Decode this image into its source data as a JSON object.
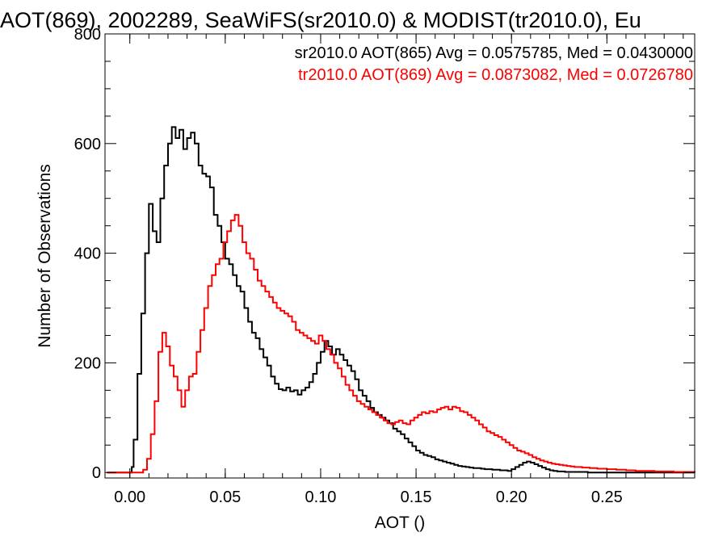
{
  "chart_data": {
    "type": "step",
    "title": "AOT(869), 2002289, SeaWiFS(sr2010.0) & MODIST(tr2010.0), Eu",
    "xlabel": "AOT ()",
    "ylabel": "Number of Observations",
    "xlim": [
      -0.013,
      0.296
    ],
    "ylim": [
      -10,
      800
    ],
    "xticks": [
      0.0,
      0.05,
      0.1,
      0.15,
      0.2,
      0.25
    ],
    "xtick_labels": [
      "0.00",
      "0.05",
      "0.10",
      "0.15",
      "0.20",
      "0.25"
    ],
    "yticks": [
      0,
      200,
      400,
      600,
      800
    ],
    "ytick_labels": [
      "0",
      "200",
      "400",
      "600",
      "800"
    ],
    "grid": false,
    "legend_position": "top-right",
    "series": [
      {
        "name": "sr2010.0 AOT(865) Avg = 0.0575785, Med = 0.0430000",
        "color": "#000000",
        "points": [
          [
            -0.012,
            0
          ],
          [
            0.0,
            0
          ],
          [
            0.001,
            10
          ],
          [
            0.002,
            60
          ],
          [
            0.004,
            180
          ],
          [
            0.006,
            290
          ],
          [
            0.008,
            400
          ],
          [
            0.01,
            490
          ],
          [
            0.012,
            440
          ],
          [
            0.014,
            420
          ],
          [
            0.016,
            500
          ],
          [
            0.018,
            560
          ],
          [
            0.02,
            600
          ],
          [
            0.022,
            630
          ],
          [
            0.024,
            610
          ],
          [
            0.026,
            625
          ],
          [
            0.028,
            590
          ],
          [
            0.03,
            610
          ],
          [
            0.032,
            620
          ],
          [
            0.034,
            600
          ],
          [
            0.036,
            560
          ],
          [
            0.038,
            545
          ],
          [
            0.04,
            540
          ],
          [
            0.042,
            520
          ],
          [
            0.044,
            470
          ],
          [
            0.046,
            450
          ],
          [
            0.048,
            420
          ],
          [
            0.05,
            390
          ],
          [
            0.052,
            380
          ],
          [
            0.054,
            360
          ],
          [
            0.056,
            340
          ],
          [
            0.058,
            330
          ],
          [
            0.06,
            300
          ],
          [
            0.062,
            275
          ],
          [
            0.064,
            255
          ],
          [
            0.066,
            245
          ],
          [
            0.068,
            225
          ],
          [
            0.07,
            210
          ],
          [
            0.072,
            195
          ],
          [
            0.074,
            175
          ],
          [
            0.076,
            162
          ],
          [
            0.078,
            152
          ],
          [
            0.08,
            150
          ],
          [
            0.082,
            155
          ],
          [
            0.084,
            148
          ],
          [
            0.086,
            150
          ],
          [
            0.088,
            142
          ],
          [
            0.09,
            150
          ],
          [
            0.092,
            155
          ],
          [
            0.094,
            165
          ],
          [
            0.096,
            180
          ],
          [
            0.098,
            200
          ],
          [
            0.1,
            220
          ],
          [
            0.102,
            240
          ],
          [
            0.104,
            230
          ],
          [
            0.106,
            215
          ],
          [
            0.108,
            225
          ],
          [
            0.11,
            215
          ],
          [
            0.112,
            205
          ],
          [
            0.114,
            195
          ],
          [
            0.116,
            185
          ],
          [
            0.118,
            170
          ],
          [
            0.12,
            150
          ],
          [
            0.122,
            140
          ],
          [
            0.124,
            130
          ],
          [
            0.126,
            118
          ],
          [
            0.128,
            110
          ],
          [
            0.13,
            105
          ],
          [
            0.132,
            100
          ],
          [
            0.134,
            95
          ],
          [
            0.136,
            90
          ],
          [
            0.138,
            80
          ],
          [
            0.14,
            75
          ],
          [
            0.142,
            70
          ],
          [
            0.144,
            62
          ],
          [
            0.146,
            55
          ],
          [
            0.148,
            48
          ],
          [
            0.15,
            40
          ],
          [
            0.152,
            36
          ],
          [
            0.154,
            32
          ],
          [
            0.156,
            30
          ],
          [
            0.158,
            28
          ],
          [
            0.16,
            24
          ],
          [
            0.162,
            22
          ],
          [
            0.164,
            20
          ],
          [
            0.166,
            18
          ],
          [
            0.168,
            16
          ],
          [
            0.17,
            14
          ],
          [
            0.172,
            12
          ],
          [
            0.174,
            11
          ],
          [
            0.176,
            10
          ],
          [
            0.178,
            9
          ],
          [
            0.18,
            8
          ],
          [
            0.182,
            8
          ],
          [
            0.184,
            7
          ],
          [
            0.186,
            6
          ],
          [
            0.188,
            6
          ],
          [
            0.19,
            5
          ],
          [
            0.192,
            5
          ],
          [
            0.194,
            4
          ],
          [
            0.196,
            4
          ],
          [
            0.198,
            3
          ],
          [
            0.2,
            6
          ],
          [
            0.202,
            10
          ],
          [
            0.204,
            14
          ],
          [
            0.206,
            18
          ],
          [
            0.208,
            20
          ],
          [
            0.21,
            18
          ],
          [
            0.212,
            15
          ],
          [
            0.214,
            12
          ],
          [
            0.216,
            9
          ],
          [
            0.218,
            6
          ],
          [
            0.22,
            4
          ],
          [
            0.222,
            3
          ],
          [
            0.224,
            2
          ],
          [
            0.226,
            2
          ],
          [
            0.228,
            1
          ],
          [
            0.23,
            1
          ],
          [
            0.235,
            1
          ],
          [
            0.24,
            0
          ],
          [
            0.296,
            0
          ]
        ]
      },
      {
        "name": "tr2010.0 AOT(869) Avg = 0.0873082, Med = 0.0726780",
        "color": "#ff0000",
        "points": [
          [
            -0.012,
            0
          ],
          [
            0.005,
            0
          ],
          [
            0.007,
            5
          ],
          [
            0.009,
            25
          ],
          [
            0.011,
            70
          ],
          [
            0.013,
            130
          ],
          [
            0.015,
            220
          ],
          [
            0.017,
            255
          ],
          [
            0.019,
            230
          ],
          [
            0.021,
            195
          ],
          [
            0.023,
            175
          ],
          [
            0.025,
            150
          ],
          [
            0.027,
            120
          ],
          [
            0.029,
            150
          ],
          [
            0.031,
            175
          ],
          [
            0.033,
            180
          ],
          [
            0.035,
            220
          ],
          [
            0.037,
            260
          ],
          [
            0.039,
            300
          ],
          [
            0.041,
            340
          ],
          [
            0.043,
            360
          ],
          [
            0.045,
            380
          ],
          [
            0.047,
            390
          ],
          [
            0.049,
            420
          ],
          [
            0.051,
            440
          ],
          [
            0.053,
            460
          ],
          [
            0.055,
            470
          ],
          [
            0.057,
            450
          ],
          [
            0.059,
            420
          ],
          [
            0.061,
            400
          ],
          [
            0.063,
            390
          ],
          [
            0.065,
            370
          ],
          [
            0.067,
            350
          ],
          [
            0.069,
            340
          ],
          [
            0.071,
            330
          ],
          [
            0.073,
            320
          ],
          [
            0.075,
            310
          ],
          [
            0.077,
            300
          ],
          [
            0.079,
            295
          ],
          [
            0.081,
            290
          ],
          [
            0.083,
            285
          ],
          [
            0.085,
            275
          ],
          [
            0.087,
            260
          ],
          [
            0.089,
            255
          ],
          [
            0.091,
            250
          ],
          [
            0.093,
            245
          ],
          [
            0.095,
            240
          ],
          [
            0.097,
            235
          ],
          [
            0.099,
            250
          ],
          [
            0.101,
            240
          ],
          [
            0.103,
            225
          ],
          [
            0.105,
            215
          ],
          [
            0.107,
            200
          ],
          [
            0.109,
            190
          ],
          [
            0.111,
            175
          ],
          [
            0.113,
            160
          ],
          [
            0.115,
            150
          ],
          [
            0.117,
            140
          ],
          [
            0.119,
            130
          ],
          [
            0.121,
            125
          ],
          [
            0.123,
            120
          ],
          [
            0.125,
            115
          ],
          [
            0.127,
            110
          ],
          [
            0.129,
            105
          ],
          [
            0.131,
            100
          ],
          [
            0.133,
            95
          ],
          [
            0.135,
            90
          ],
          [
            0.137,
            88
          ],
          [
            0.139,
            92
          ],
          [
            0.141,
            95
          ],
          [
            0.143,
            90
          ],
          [
            0.145,
            88
          ],
          [
            0.147,
            95
          ],
          [
            0.149,
            100
          ],
          [
            0.151,
            105
          ],
          [
            0.153,
            110
          ],
          [
            0.155,
            108
          ],
          [
            0.157,
            112
          ],
          [
            0.159,
            110
          ],
          [
            0.161,
            115
          ],
          [
            0.163,
            118
          ],
          [
            0.165,
            120
          ],
          [
            0.167,
            115
          ],
          [
            0.169,
            120
          ],
          [
            0.171,
            118
          ],
          [
            0.173,
            112
          ],
          [
            0.175,
            110
          ],
          [
            0.177,
            105
          ],
          [
            0.179,
            100
          ],
          [
            0.181,
            95
          ],
          [
            0.183,
            88
          ],
          [
            0.185,
            82
          ],
          [
            0.187,
            75
          ],
          [
            0.189,
            72
          ],
          [
            0.191,
            68
          ],
          [
            0.193,
            65
          ],
          [
            0.195,
            60
          ],
          [
            0.197,
            55
          ],
          [
            0.199,
            50
          ],
          [
            0.201,
            45
          ],
          [
            0.203,
            40
          ],
          [
            0.205,
            38
          ],
          [
            0.207,
            35
          ],
          [
            0.209,
            32
          ],
          [
            0.211,
            28
          ],
          [
            0.213,
            25
          ],
          [
            0.215,
            22
          ],
          [
            0.217,
            20
          ],
          [
            0.219,
            18
          ],
          [
            0.221,
            16
          ],
          [
            0.223,
            15
          ],
          [
            0.225,
            14
          ],
          [
            0.227,
            13
          ],
          [
            0.229,
            12
          ],
          [
            0.231,
            11
          ],
          [
            0.233,
            10
          ],
          [
            0.235,
            10
          ],
          [
            0.237,
            9
          ],
          [
            0.239,
            9
          ],
          [
            0.241,
            8
          ],
          [
            0.243,
            8
          ],
          [
            0.245,
            7
          ],
          [
            0.247,
            7
          ],
          [
            0.25,
            6
          ],
          [
            0.255,
            5
          ],
          [
            0.26,
            4
          ],
          [
            0.265,
            3
          ],
          [
            0.27,
            3
          ],
          [
            0.275,
            2
          ],
          [
            0.28,
            2
          ],
          [
            0.285,
            1
          ],
          [
            0.29,
            1
          ],
          [
            0.296,
            0
          ]
        ]
      }
    ]
  }
}
